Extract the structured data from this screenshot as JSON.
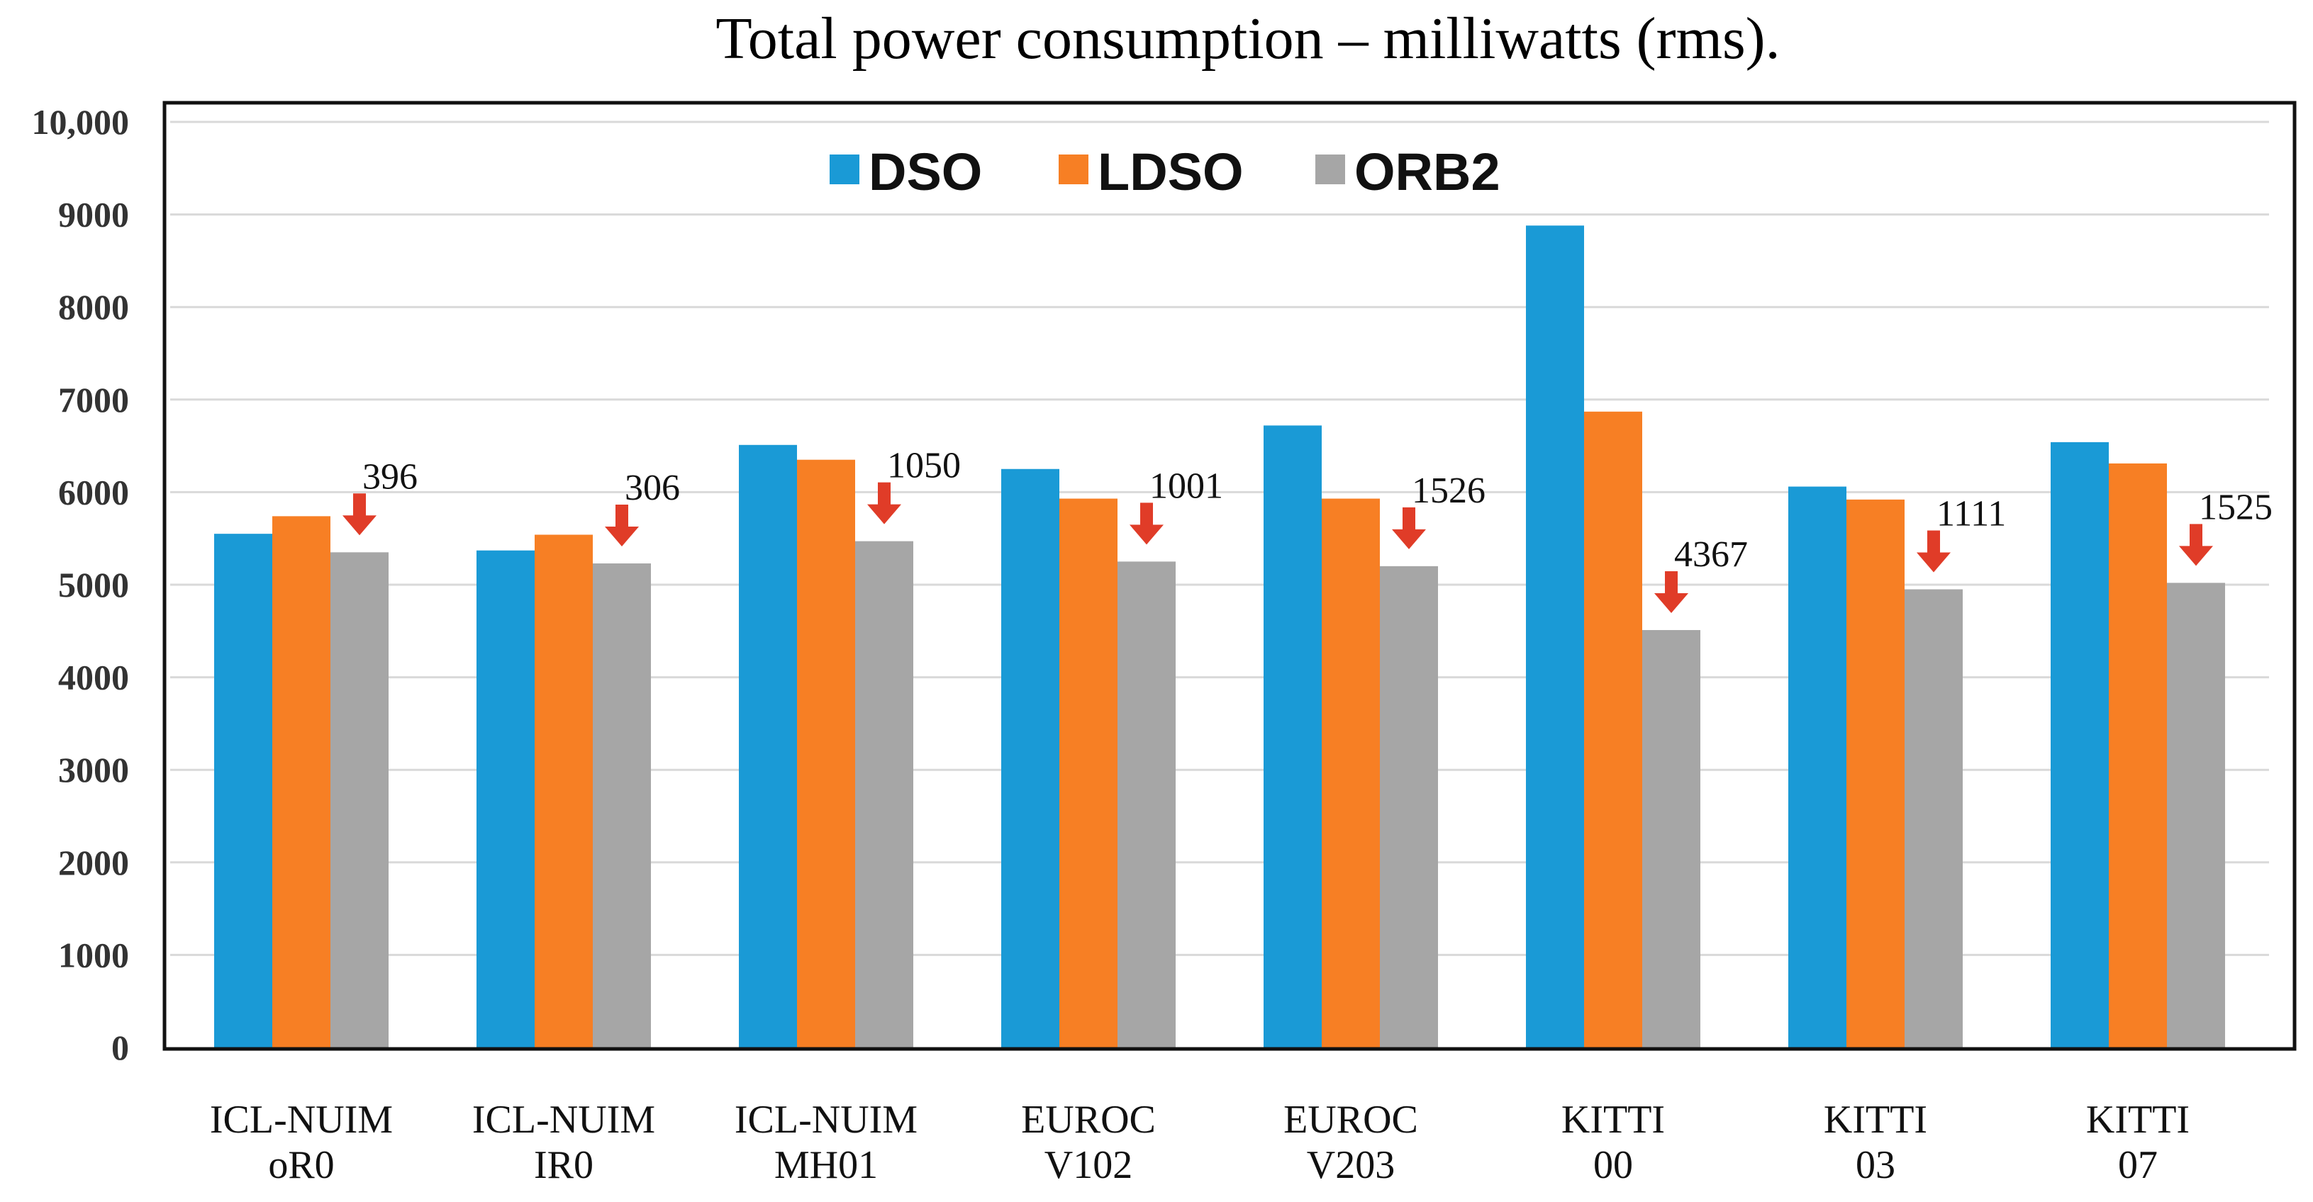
{
  "chart_data": {
    "type": "bar",
    "title": "Total power consumption – milliwatts (rms).",
    "xlabel": "",
    "ylabel": "",
    "ylim": [
      0,
      10000
    ],
    "yticks": [
      0,
      1000,
      2000,
      3000,
      4000,
      5000,
      6000,
      7000,
      8000,
      9000,
      10000
    ],
    "ytick_labels": [
      "0",
      "1000",
      "2000",
      "3000",
      "4000",
      "5000",
      "6000",
      "7000",
      "8000",
      "9000",
      "10,000"
    ],
    "grid": true,
    "legend_position": "top-center",
    "categories": [
      [
        "ICL-NUIM",
        "oR0"
      ],
      [
        "ICL-NUIM",
        "IR0"
      ],
      [
        "ICL-NUIM",
        "MH01"
      ],
      [
        "EUROC",
        "V102"
      ],
      [
        "EUROC",
        "V203"
      ],
      [
        "KITTI",
        "00"
      ],
      [
        "KITTI",
        "03"
      ],
      [
        "KITTI",
        "07"
      ]
    ],
    "series": [
      {
        "name": "DSO",
        "color": "#1a9ad6",
        "values": [
          5550,
          5370,
          6510,
          6250,
          6720,
          8880,
          6060,
          6540
        ]
      },
      {
        "name": "LDSO",
        "color": "#f77f24",
        "values": [
          5740,
          5540,
          6350,
          5930,
          5930,
          6870,
          5920,
          6310
        ]
      },
      {
        "name": "ORB2",
        "color": "#a6a6a6",
        "values": [
          5350,
          5230,
          5470,
          5250,
          5200,
          4510,
          4950,
          5020
        ]
      }
    ],
    "annotations": {
      "labels": [
        "396",
        "306",
        "1050",
        "1001",
        "1526",
        "4367",
        "1111",
        "1525"
      ],
      "arrow_color": "#e03c28"
    }
  }
}
